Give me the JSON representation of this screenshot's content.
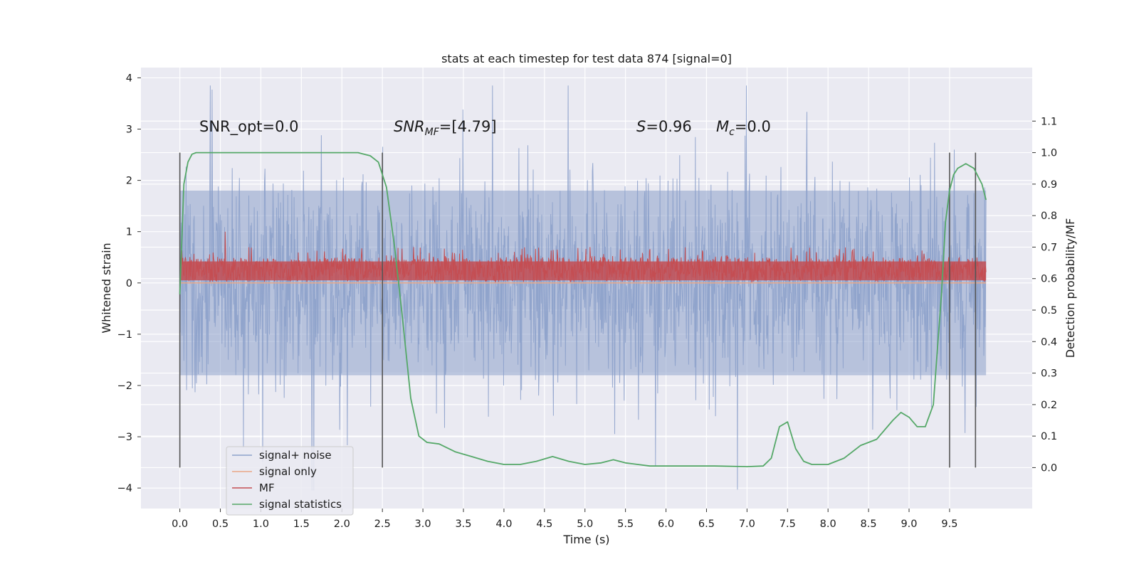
{
  "chart_data": {
    "type": "line",
    "title": "stats at each timestep for test data 874 [signal=0]",
    "xlabel": "Time (s)",
    "ylabel": "Whitened strain",
    "y2label": "Detection probability/MF",
    "xlim": [
      -0.48,
      10.52
    ],
    "ylim": [
      -4.4,
      4.2
    ],
    "y2lim": [
      -0.13,
      1.27
    ],
    "x_ticks": [
      0.0,
      0.5,
      1.0,
      1.5,
      2.0,
      2.5,
      3.0,
      3.5,
      4.0,
      4.5,
      5.0,
      5.5,
      6.0,
      6.5,
      7.0,
      7.5,
      8.0,
      8.5,
      9.0,
      9.5
    ],
    "x_tick_labels": [
      "0.0",
      "0.5",
      "1.0",
      "1.5",
      "2.0",
      "2.5",
      "3.0",
      "3.5",
      "4.0",
      "4.5",
      "5.0",
      "5.5",
      "6.0",
      "6.5",
      "7.0",
      "7.5",
      "8.0",
      "8.5",
      "9.0",
      "9.5"
    ],
    "y_ticks": [
      -4,
      -3,
      -2,
      -1,
      0,
      1,
      2,
      3,
      4
    ],
    "y_tick_labels": [
      "−4",
      "−3",
      "−2",
      "−1",
      "0",
      "1",
      "2",
      "3",
      "4"
    ],
    "y2_ticks": [
      0.0,
      0.1,
      0.2,
      0.3,
      0.4,
      0.5,
      0.6,
      0.7,
      0.8,
      0.9,
      1.0,
      1.1
    ],
    "y2_tick_labels": [
      "0.0",
      "0.1",
      "0.2",
      "0.3",
      "0.4",
      "0.5",
      "0.6",
      "0.7",
      "0.8",
      "0.9",
      "1.0",
      "1.1"
    ],
    "grid": true,
    "legend_position": "bottom-left",
    "legend": [
      "signal+ noise",
      "signal only",
      "MF",
      "signal statistics"
    ],
    "colors": {
      "signal_noise": "#8da1cb",
      "signal_only": "#e9a888",
      "mf": "#c44e52",
      "signal_statistics": "#55a868",
      "vlines": "#555555",
      "plot_bg": "#eaeaf2",
      "grid": "#ffffff"
    },
    "series": [
      {
        "name": "signal+ noise",
        "axis": "left",
        "kind": "noise_band",
        "x_range": [
          0.0,
          9.95
        ],
        "typical_range": [
          -1.8,
          1.8
        ],
        "min": -4.05,
        "max": 3.85
      },
      {
        "name": "signal only",
        "axis": "left",
        "kind": "line",
        "x": [
          0.0,
          9.95
        ],
        "y": [
          0.0,
          0.0
        ]
      },
      {
        "name": "MF",
        "axis": "left",
        "kind": "band",
        "x_range": [
          0.0,
          9.95
        ],
        "lower": 0.02,
        "upper": 0.5,
        "max": 1.0
      },
      {
        "name": "signal statistics",
        "axis": "right",
        "kind": "line",
        "x": [
          0.0,
          0.05,
          0.1,
          0.15,
          0.2,
          0.3,
          0.5,
          1.0,
          1.5,
          2.0,
          2.2,
          2.35,
          2.45,
          2.55,
          2.65,
          2.75,
          2.85,
          2.95,
          3.05,
          3.2,
          3.4,
          3.6,
          3.8,
          4.0,
          4.2,
          4.4,
          4.6,
          4.8,
          5.0,
          5.2,
          5.35,
          5.5,
          5.8,
          6.2,
          6.6,
          7.0,
          7.2,
          7.3,
          7.4,
          7.5,
          7.6,
          7.7,
          7.8,
          8.0,
          8.2,
          8.4,
          8.6,
          8.8,
          8.9,
          9.0,
          9.1,
          9.2,
          9.3,
          9.4,
          9.45,
          9.5,
          9.55,
          9.6,
          9.7,
          9.8,
          9.9,
          9.95
        ],
        "y": [
          0.55,
          0.9,
          0.97,
          0.995,
          1.0,
          1.0,
          1.0,
          1.0,
          1.0,
          1.0,
          1.0,
          0.99,
          0.97,
          0.89,
          0.7,
          0.47,
          0.22,
          0.1,
          0.08,
          0.075,
          0.05,
          0.035,
          0.02,
          0.01,
          0.01,
          0.02,
          0.035,
          0.02,
          0.01,
          0.015,
          0.025,
          0.015,
          0.005,
          0.005,
          0.005,
          0.003,
          0.005,
          0.03,
          0.13,
          0.145,
          0.06,
          0.02,
          0.01,
          0.01,
          0.03,
          0.07,
          0.09,
          0.15,
          0.175,
          0.16,
          0.13,
          0.13,
          0.2,
          0.55,
          0.78,
          0.88,
          0.93,
          0.95,
          0.965,
          0.95,
          0.9,
          0.85
        ]
      }
    ],
    "vlines_x": [
      0.0,
      2.5,
      9.5,
      9.82
    ],
    "annotations": {
      "snr_opt": "SNR_opt=0.0",
      "snr_mf_sym": "SNR",
      "snr_mf_sub": "MF",
      "snr_mf_val": "=[4.79]",
      "s_sym": "S",
      "s_val": "=0.96",
      "mc_sym": "M",
      "mc_sub": "c",
      "mc_val": "=0.0"
    }
  }
}
